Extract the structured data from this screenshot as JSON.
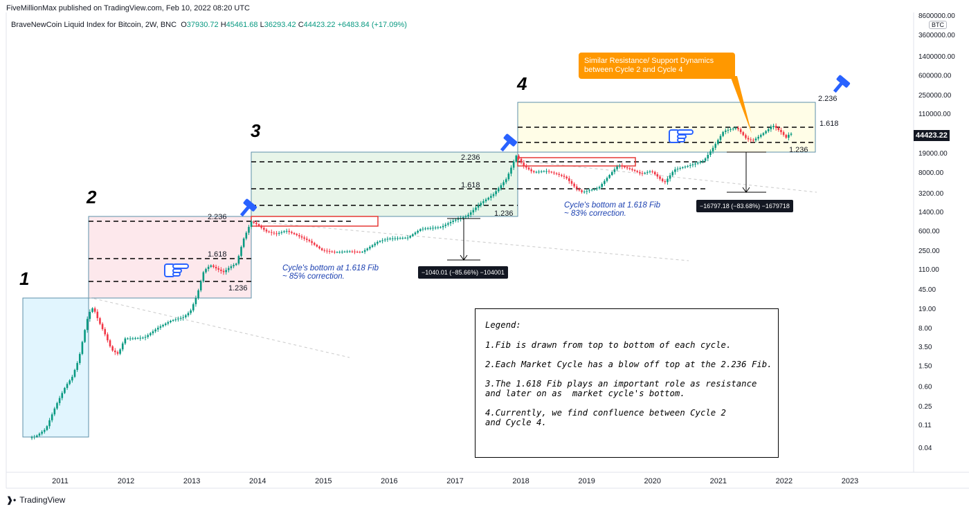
{
  "header": {
    "publisher": "FiveMillionMax published on TradingView.com, Feb 10, 2022 08:20 UTC",
    "symbol": "BraveNewCoin Liquid Index for Bitcoin, 2W, BNC",
    "open_label": "O",
    "open": "37930.72",
    "high_label": "H",
    "high": "45461.68",
    "low_label": "L",
    "low": "36293.42",
    "close_label": "C",
    "close": "44423.22",
    "change": "+6483.84 (+17.09%)"
  },
  "footer": {
    "brand": "TradingView"
  },
  "price_axis": {
    "unit_box": "BTC",
    "current_price": "44423.22"
  },
  "annotations": {
    "cycle_numbers": [
      "1",
      "2",
      "3",
      "4"
    ],
    "callout": "Similar Resistance/ Support Dynamics\nbetween Cycle 2 and Cycle 4",
    "note_cycle3": "Cycle's bottom at 1.618 Fib\n~ 85% correction.",
    "note_cycle4": "Cycle's bottom at 1.618 Fib\n~ 83% correction.",
    "measure_cycle3": "−1040.01 (−85.66%) −104001",
    "measure_cycle4": "−16797.18 (−83.68%) −1679718",
    "fib_labels": {
      "c2_top": "2.236",
      "c2_mid": "1.618",
      "c2_bot": "1.236",
      "c3_top": "2.236",
      "c3_mid": "1.618",
      "c3_bot": "1.236",
      "c4_top": "2.236",
      "c4_mid": "1.618",
      "c4_bot": "1.236"
    }
  },
  "legend": {
    "title": "Legend:",
    "items": [
      "1.Fib is drawn from top to bottom of each cycle.",
      "2.Each Market Cycle has a blow off top at the 2.236 Fib.",
      "3.The 1.618 Fib plays an important role as resistance\nand later on as  market cycle's bottom.",
      "4.Currently, we find confluence between Cycle 2\nand Cycle 4."
    ]
  },
  "colors": {
    "up": "#089981",
    "down": "#f23645",
    "accent_blue": "#2962ff",
    "callout": "#ff9800",
    "cycle1_fill": "#e1f5fe",
    "cycle2_fill": "#fde8ec",
    "cycle3_fill": "#e8f5e9",
    "cycle4_fill": "#fffde7"
  },
  "chart_data": {
    "type": "candlestick",
    "scale": "log",
    "timeframe": "2W",
    "x_tick_labels": [
      "2011",
      "2012",
      "2013",
      "2014",
      "2015",
      "2016",
      "2017",
      "2018",
      "2019",
      "2020",
      "2021",
      "2022",
      "2023"
    ],
    "x_ticks": [
      2011,
      2012,
      2013,
      2014,
      2015,
      2016,
      2017,
      2018,
      2019,
      2020,
      2021,
      2022,
      2023
    ],
    "y_tick_labels": [
      "8600000.00",
      "3600000.00",
      "1400000.00",
      "600000.00",
      "250000.00",
      "110000.00",
      "19000.00",
      "8000.00",
      "3200.00",
      "1400.00",
      "600.00",
      "250.00",
      "110.00",
      "45.00",
      "19.00",
      "8.00",
      "3.50",
      "1.50",
      "0.60",
      "0.25",
      "0.11",
      "0.04"
    ],
    "y_ticks": [
      8600000,
      3600000,
      1400000,
      600000,
      250000,
      110000,
      19000,
      8000,
      3200,
      1400,
      600,
      250,
      110,
      45,
      19,
      8,
      3.5,
      1.5,
      0.6,
      0.25,
      0.11,
      0.04
    ],
    "price_path": [
      [
        2010.55,
        0.06
      ],
      [
        2010.65,
        0.065
      ],
      [
        2010.8,
        0.09
      ],
      [
        2010.95,
        0.25
      ],
      [
        2011.1,
        0.6
      ],
      [
        2011.2,
        0.9
      ],
      [
        2011.3,
        2
      ],
      [
        2011.4,
        8
      ],
      [
        2011.45,
        15
      ],
      [
        2011.52,
        20
      ],
      [
        2011.6,
        11
      ],
      [
        2011.7,
        6
      ],
      [
        2011.8,
        3
      ],
      [
        2011.9,
        2.5
      ],
      [
        2012.0,
        5
      ],
      [
        2012.1,
        5
      ],
      [
        2012.3,
        5.2
      ],
      [
        2012.5,
        8
      ],
      [
        2012.7,
        11
      ],
      [
        2012.9,
        13
      ],
      [
        2013.0,
        17
      ],
      [
        2013.1,
        35
      ],
      [
        2013.2,
        100
      ],
      [
        2013.3,
        130
      ],
      [
        2013.4,
        110
      ],
      [
        2013.5,
        95
      ],
      [
        2013.6,
        120
      ],
      [
        2013.7,
        140
      ],
      [
        2013.8,
        400
      ],
      [
        2013.92,
        900
      ],
      [
        2014.0,
        800
      ],
      [
        2014.15,
        580
      ],
      [
        2014.3,
        520
      ],
      [
        2014.45,
        600
      ],
      [
        2014.6,
        500
      ],
      [
        2014.8,
        380
      ],
      [
        2015.0,
        250
      ],
      [
        2015.2,
        230
      ],
      [
        2015.4,
        240
      ],
      [
        2015.6,
        230
      ],
      [
        2015.85,
        370
      ],
      [
        2016.0,
        420
      ],
      [
        2016.3,
        440
      ],
      [
        2016.5,
        650
      ],
      [
        2016.8,
        700
      ],
      [
        2017.0,
        950
      ],
      [
        2017.2,
        1150
      ],
      [
        2017.4,
        2000
      ],
      [
        2017.6,
        3000
      ],
      [
        2017.8,
        6000
      ],
      [
        2017.95,
        17000
      ],
      [
        2018.05,
        11000
      ],
      [
        2018.2,
        8000
      ],
      [
        2018.4,
        8500
      ],
      [
        2018.55,
        7500
      ],
      [
        2018.7,
        6400
      ],
      [
        2018.85,
        4000
      ],
      [
        2018.95,
        3300
      ],
      [
        2019.2,
        4000
      ],
      [
        2019.4,
        8000
      ],
      [
        2019.5,
        11000
      ],
      [
        2019.7,
        9000
      ],
      [
        2019.85,
        7500
      ],
      [
        2020.0,
        8500
      ],
      [
        2020.2,
        5000
      ],
      [
        2020.35,
        9000
      ],
      [
        2020.6,
        11000
      ],
      [
        2020.8,
        13500
      ],
      [
        2020.95,
        25000
      ],
      [
        2021.1,
        50000
      ],
      [
        2021.3,
        58000
      ],
      [
        2021.45,
        35000
      ],
      [
        2021.55,
        33000
      ],
      [
        2021.7,
        45000
      ],
      [
        2021.85,
        64000
      ],
      [
        2021.97,
        48000
      ],
      [
        2022.05,
        37000
      ],
      [
        2022.1,
        44423
      ]
    ],
    "fib_levels": [
      {
        "cycle": "2",
        "levels": [
          {
            "fib": "2.236",
            "price": 1130
          },
          {
            "fib": "1.618",
            "price": 160
          },
          {
            "fib": "1.236",
            "price": 63
          }
        ]
      },
      {
        "cycle": "3",
        "levels": [
          {
            "fib": "2.236",
            "price": 13700
          },
          {
            "fib": "1.618",
            "price": 4300
          },
          {
            "fib": "1.236",
            "price": 2000
          }
        ]
      },
      {
        "cycle": "4",
        "levels": [
          {
            "fib": "2.236",
            "price": 175000
          },
          {
            "fib": "1.618",
            "price": 64000
          },
          {
            "fib": "1.236",
            "price": 30000
          }
        ]
      }
    ]
  }
}
